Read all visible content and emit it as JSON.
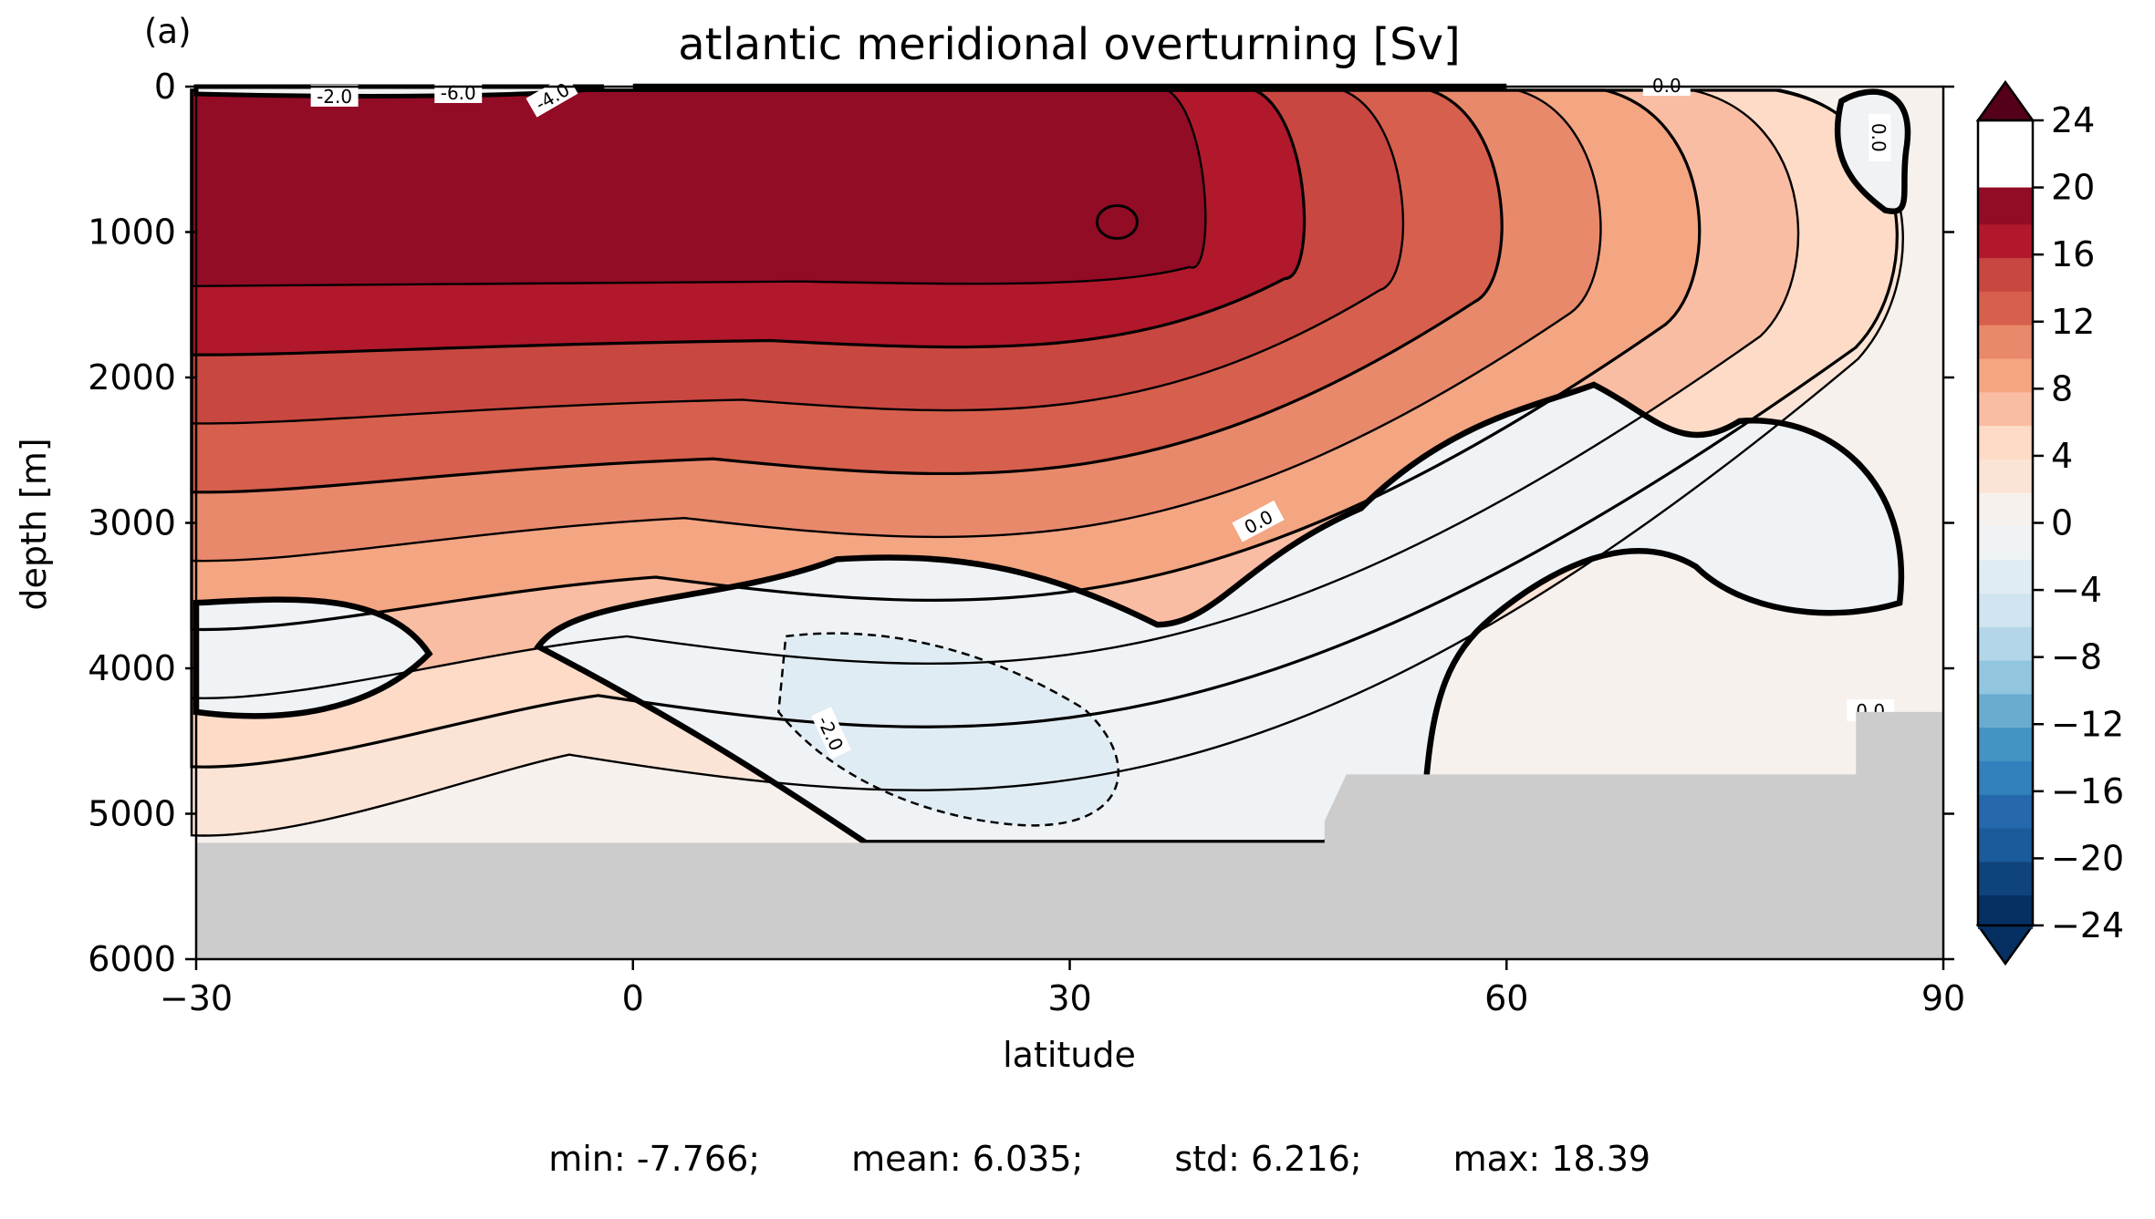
{
  "panel_label": "(a)",
  "chart_data": {
    "type": "contour",
    "title": "atlantic meridional overturning [Sv]",
    "xlabel": "latitude",
    "ylabel": "depth [m]",
    "xlim": [
      -30,
      90
    ],
    "ylim": [
      6000,
      0
    ],
    "xticks": [
      -30,
      0,
      30,
      60,
      90
    ],
    "xtick_labels": [
      "−30",
      "0",
      "30",
      "60",
      "90"
    ],
    "yticks": [
      0,
      1000,
      2000,
      3000,
      4000,
      5000,
      6000
    ],
    "ytick_labels": [
      "0",
      "1000",
      "2000",
      "3000",
      "4000",
      "5000",
      "6000"
    ],
    "grid": false,
    "colormap": "RdBu_r",
    "colorbar": {
      "min": -24,
      "max": 24,
      "step": 2,
      "extend": "both",
      "ticks": [
        24,
        20,
        16,
        12,
        8,
        4,
        0,
        -4,
        -8,
        -12,
        -16,
        -20,
        -24
      ],
      "tick_labels": [
        "24",
        "20",
        "16",
        "12",
        "8",
        "4",
        "0",
        "−4",
        "−8",
        "−12",
        "−16",
        "−20",
        "−24"
      ],
      "colors": [
        "#053061",
        "#0f437b",
        "#1b5a9b",
        "#2569ac",
        "#3281bd",
        "#4393c3",
        "#6aacd0",
        "#92c5de",
        "#b3d6e8",
        "#d1e5f0",
        "#e0ecf4",
        "#eff3f5",
        "#f7f1ed",
        "#fbe4d6",
        "#fddbc7",
        "#f9bda3",
        "#f4a582",
        "#e8896c",
        "#d6604d",
        "#c94741",
        "#b2182b",
        "#920c25",
        "#67001f",
        "#550019"
      ]
    },
    "contour_labels": [
      "-2.0",
      "-6.0",
      "-4.0",
      "0.0",
      "0.0",
      "0.0",
      "-2.0",
      "0.0"
    ],
    "seafloor_depth": [
      {
        "lat_from": -30,
        "lat_to": 47.5,
        "depth": 5200
      },
      {
        "lat_from": 49,
        "lat_to": 84,
        "depth": 4730
      },
      {
        "lat_from": 84,
        "lat_to": 90,
        "depth": 4300
      }
    ],
    "overturning_cell": {
      "max_sv": 18.39,
      "core_lat": 32.5,
      "core_depth": 950,
      "levels_sv": [
        2,
        4,
        6,
        8,
        10,
        12,
        14,
        16,
        18
      ]
    },
    "stats": {
      "min": "min: -7.766;",
      "mean": "mean: 6.035;",
      "std": "std: 6.216;",
      "max": "max: 18.39"
    }
  }
}
